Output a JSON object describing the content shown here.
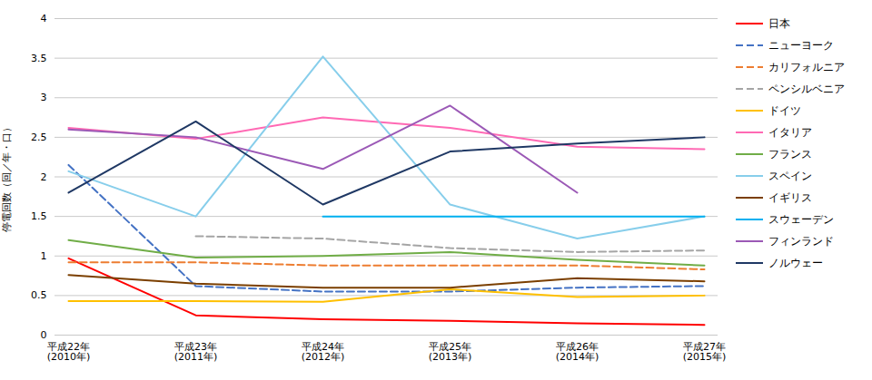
{
  "chart_data": {
    "type": "line",
    "ylabel": "停電回数（回／年・口）",
    "categories": [
      "平成22年\n(2010年)",
      "平成23年\n(2011年)",
      "平成24年\n(2012年)",
      "平成25年\n(2013年)",
      "平成26年\n(2014年)",
      "平成27年\n(2015年)"
    ],
    "ylim": [
      0,
      4
    ],
    "yticks": [
      0,
      0.5,
      1.0,
      1.5,
      2.0,
      2.5,
      3.0,
      3.5,
      4.0
    ],
    "grid": true,
    "legend": "right",
    "series": [
      {
        "name": "日本",
        "color": "#FF0000",
        "line_style": "solid",
        "values": [
          0.97,
          0.25,
          0.2,
          0.18,
          0.15,
          0.13
        ]
      },
      {
        "name": "ニューヨーク",
        "color": "#4472C4",
        "line_style": "dashed",
        "values": [
          2.15,
          0.62,
          0.55,
          0.55,
          0.6,
          0.62
        ]
      },
      {
        "name": "カリフォルニア",
        "color": "#ED7D31",
        "line_style": "dashed",
        "values": [
          0.92,
          0.92,
          0.88,
          0.88,
          0.88,
          0.83
        ]
      },
      {
        "name": "ペンシルベニア",
        "color": "#A5A5A5",
        "line_style": "dashed",
        "values": [
          null,
          1.25,
          1.22,
          1.1,
          1.05,
          1.07
        ]
      },
      {
        "name": "ドイツ",
        "color": "#FFC000",
        "line_style": "solid",
        "values": [
          0.43,
          0.43,
          0.42,
          0.58,
          0.48,
          0.5
        ]
      },
      {
        "name": "イタリア",
        "color": "#FF69B4",
        "line_style": "solid",
        "values": [
          2.62,
          2.48,
          2.75,
          2.62,
          2.38,
          2.35
        ]
      },
      {
        "name": "フランス",
        "color": "#70AD47",
        "line_style": "solid",
        "values": [
          1.2,
          0.98,
          1.0,
          1.05,
          0.95,
          0.88
        ]
      },
      {
        "name": "スペイン",
        "color": "#87CEEB",
        "line_style": "solid",
        "values": [
          2.07,
          1.5,
          3.52,
          1.65,
          1.22,
          1.5
        ]
      },
      {
        "name": "イギリス",
        "color": "#7B3F00",
        "line_style": "solid",
        "values": [
          0.76,
          0.65,
          0.6,
          0.6,
          0.72,
          0.68
        ]
      },
      {
        "name": "スウェーデン",
        "color": "#00B0F0",
        "line_style": "solid",
        "values": [
          null,
          null,
          1.5,
          1.5,
          1.5,
          1.5
        ]
      },
      {
        "name": "フィンランド",
        "color": "#9B59B6",
        "line_style": "solid",
        "values": [
          2.6,
          2.5,
          2.1,
          2.9,
          1.8,
          null
        ]
      },
      {
        "name": "ノルウェー",
        "color": "#1F3864",
        "line_style": "solid",
        "values": [
          1.8,
          2.7,
          1.65,
          2.32,
          2.42,
          2.5
        ]
      }
    ]
  }
}
